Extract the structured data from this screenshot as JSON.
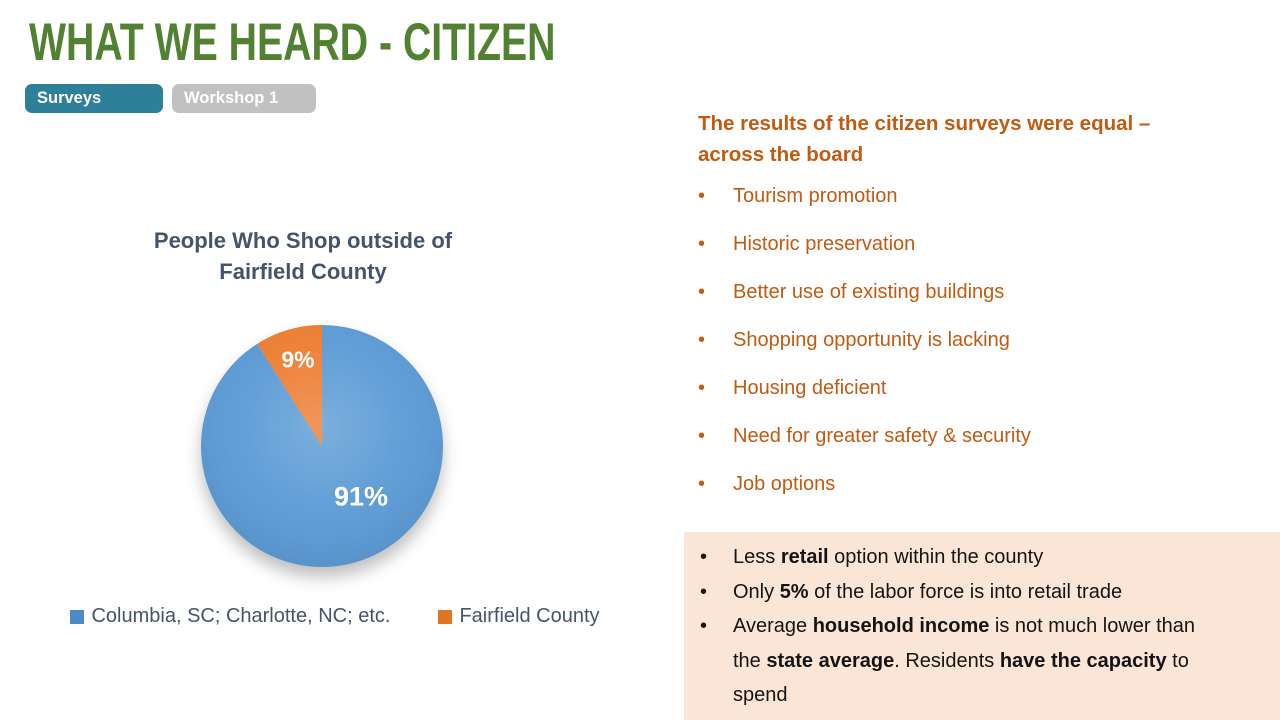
{
  "slide": {
    "title": "WHAT WE HEARD - CITIZEN",
    "tabs": [
      {
        "label": "Surveys",
        "active": true
      },
      {
        "label": "Workshop 1",
        "active": false
      }
    ]
  },
  "chart_data": {
    "type": "pie",
    "title": "People Who Shop outside of Fairfield County",
    "categories": [
      "Columbia, SC; Charlotte, NC; etc.",
      "Fairfield County"
    ],
    "values": [
      91,
      9
    ],
    "slices": [
      {
        "label": "Columbia, SC; Charlotte, NC; etc.",
        "value": 91,
        "data_label": "91%",
        "color": "#5b9bd5",
        "legend_color": "#4e8ac9"
      },
      {
        "label": "Fairfield County",
        "value": 9,
        "data_label": "9%",
        "color": "#ed7d31",
        "legend_color": "#e2751f"
      }
    ],
    "start_angle": 0,
    "direction": "clockwise",
    "legend_position": "bottom",
    "data_label_color": "#ffffff"
  },
  "right_panel": {
    "heading": "The results of the citizen surveys were equal – across the board",
    "bullet_char": "•",
    "bullets": [
      "Tourism promotion",
      "Historic preservation",
      "Better use of existing buildings",
      "Shopping opportunity is lacking",
      "Housing deficient",
      "Need for greater safety & security",
      "Job options"
    ]
  },
  "highlight_box": {
    "background": "#fbe5d6",
    "bullet_char": "•",
    "bullets": [
      [
        {
          "t": "Less "
        },
        {
          "t": "retail",
          "b": true
        },
        {
          "t": " option within the county"
        }
      ],
      [
        {
          "t": "Only "
        },
        {
          "t": "5%",
          "b": true
        },
        {
          "t": " of the labor force is into retail trade"
        }
      ],
      [
        {
          "t": "Average "
        },
        {
          "t": "household income",
          "b": true
        },
        {
          "t": " is not much lower than the "
        },
        {
          "t": "state average",
          "b": true
        },
        {
          "t": ". Residents "
        },
        {
          "t": "have the capacity",
          "b": true
        },
        {
          "t": " to spend"
        }
      ]
    ]
  },
  "colors": {
    "title_green": "#518131",
    "tab_active": "#2e7f99",
    "tab_inactive": "#c1c1c1",
    "accent_orange_text": "#c25a11",
    "chart_text": "#44546a",
    "pie_blue": "#5b9bd5",
    "pie_orange": "#ed7d31",
    "highlight_bg": "#fbe5d6"
  }
}
